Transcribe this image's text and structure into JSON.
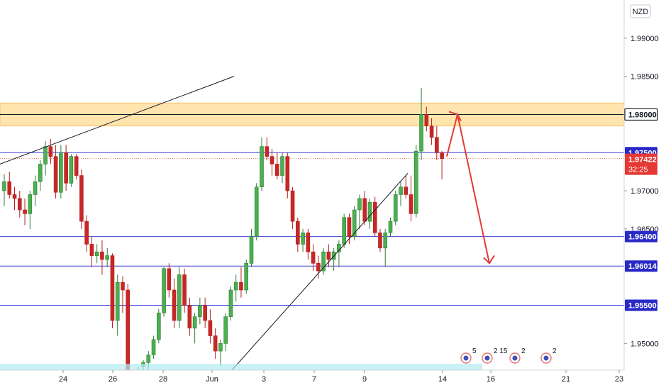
{
  "chart_data": {
    "type": "candlestick",
    "currency": "NZD",
    "price_axis_ticks": [
      "1.99000",
      "1.98500",
      "1.97000",
      "1.96500",
      "1.95000"
    ],
    "date_axis_ticks": [
      "24",
      "26",
      "28",
      "Jun",
      "3",
      "7",
      "9",
      "14",
      "16",
      "21",
      "23"
    ],
    "price_tags": [
      {
        "label": "1.98000",
        "value": 1.98,
        "style": "boxed"
      },
      {
        "label": "1.97500",
        "value": 1.975,
        "style": "blue"
      },
      {
        "label": "1.97422",
        "value": 1.97422,
        "style": "red",
        "countdown": "32:25"
      },
      {
        "label": "1.96400",
        "value": 1.964,
        "style": "blue"
      },
      {
        "label": "1.96014",
        "value": 1.96014,
        "style": "blue"
      },
      {
        "label": "1.95500",
        "value": 1.955,
        "style": "blue"
      }
    ],
    "horizontal_lines": [
      1.98,
      1.975,
      1.964,
      1.96014,
      1.955
    ],
    "resistance_zone": [
      1.9785,
      1.9815
    ],
    "y_range": [
      1.9465,
      1.995
    ],
    "colors": {
      "up": "#26a69a",
      "down": "#c62828",
      "up_fill": "#4caf50",
      "level": "#3f3fd8",
      "zone": "#ffe0a0",
      "zone_border": "#f2b84b",
      "arrow": "#e53935",
      "trend": "#131722",
      "current": "#e53935"
    },
    "event_markers": [
      {
        "label": "5"
      },
      {
        "label": "2"
      },
      {
        "label": "15"
      },
      {
        "label": "2"
      },
      {
        "label": "2"
      }
    ]
  }
}
